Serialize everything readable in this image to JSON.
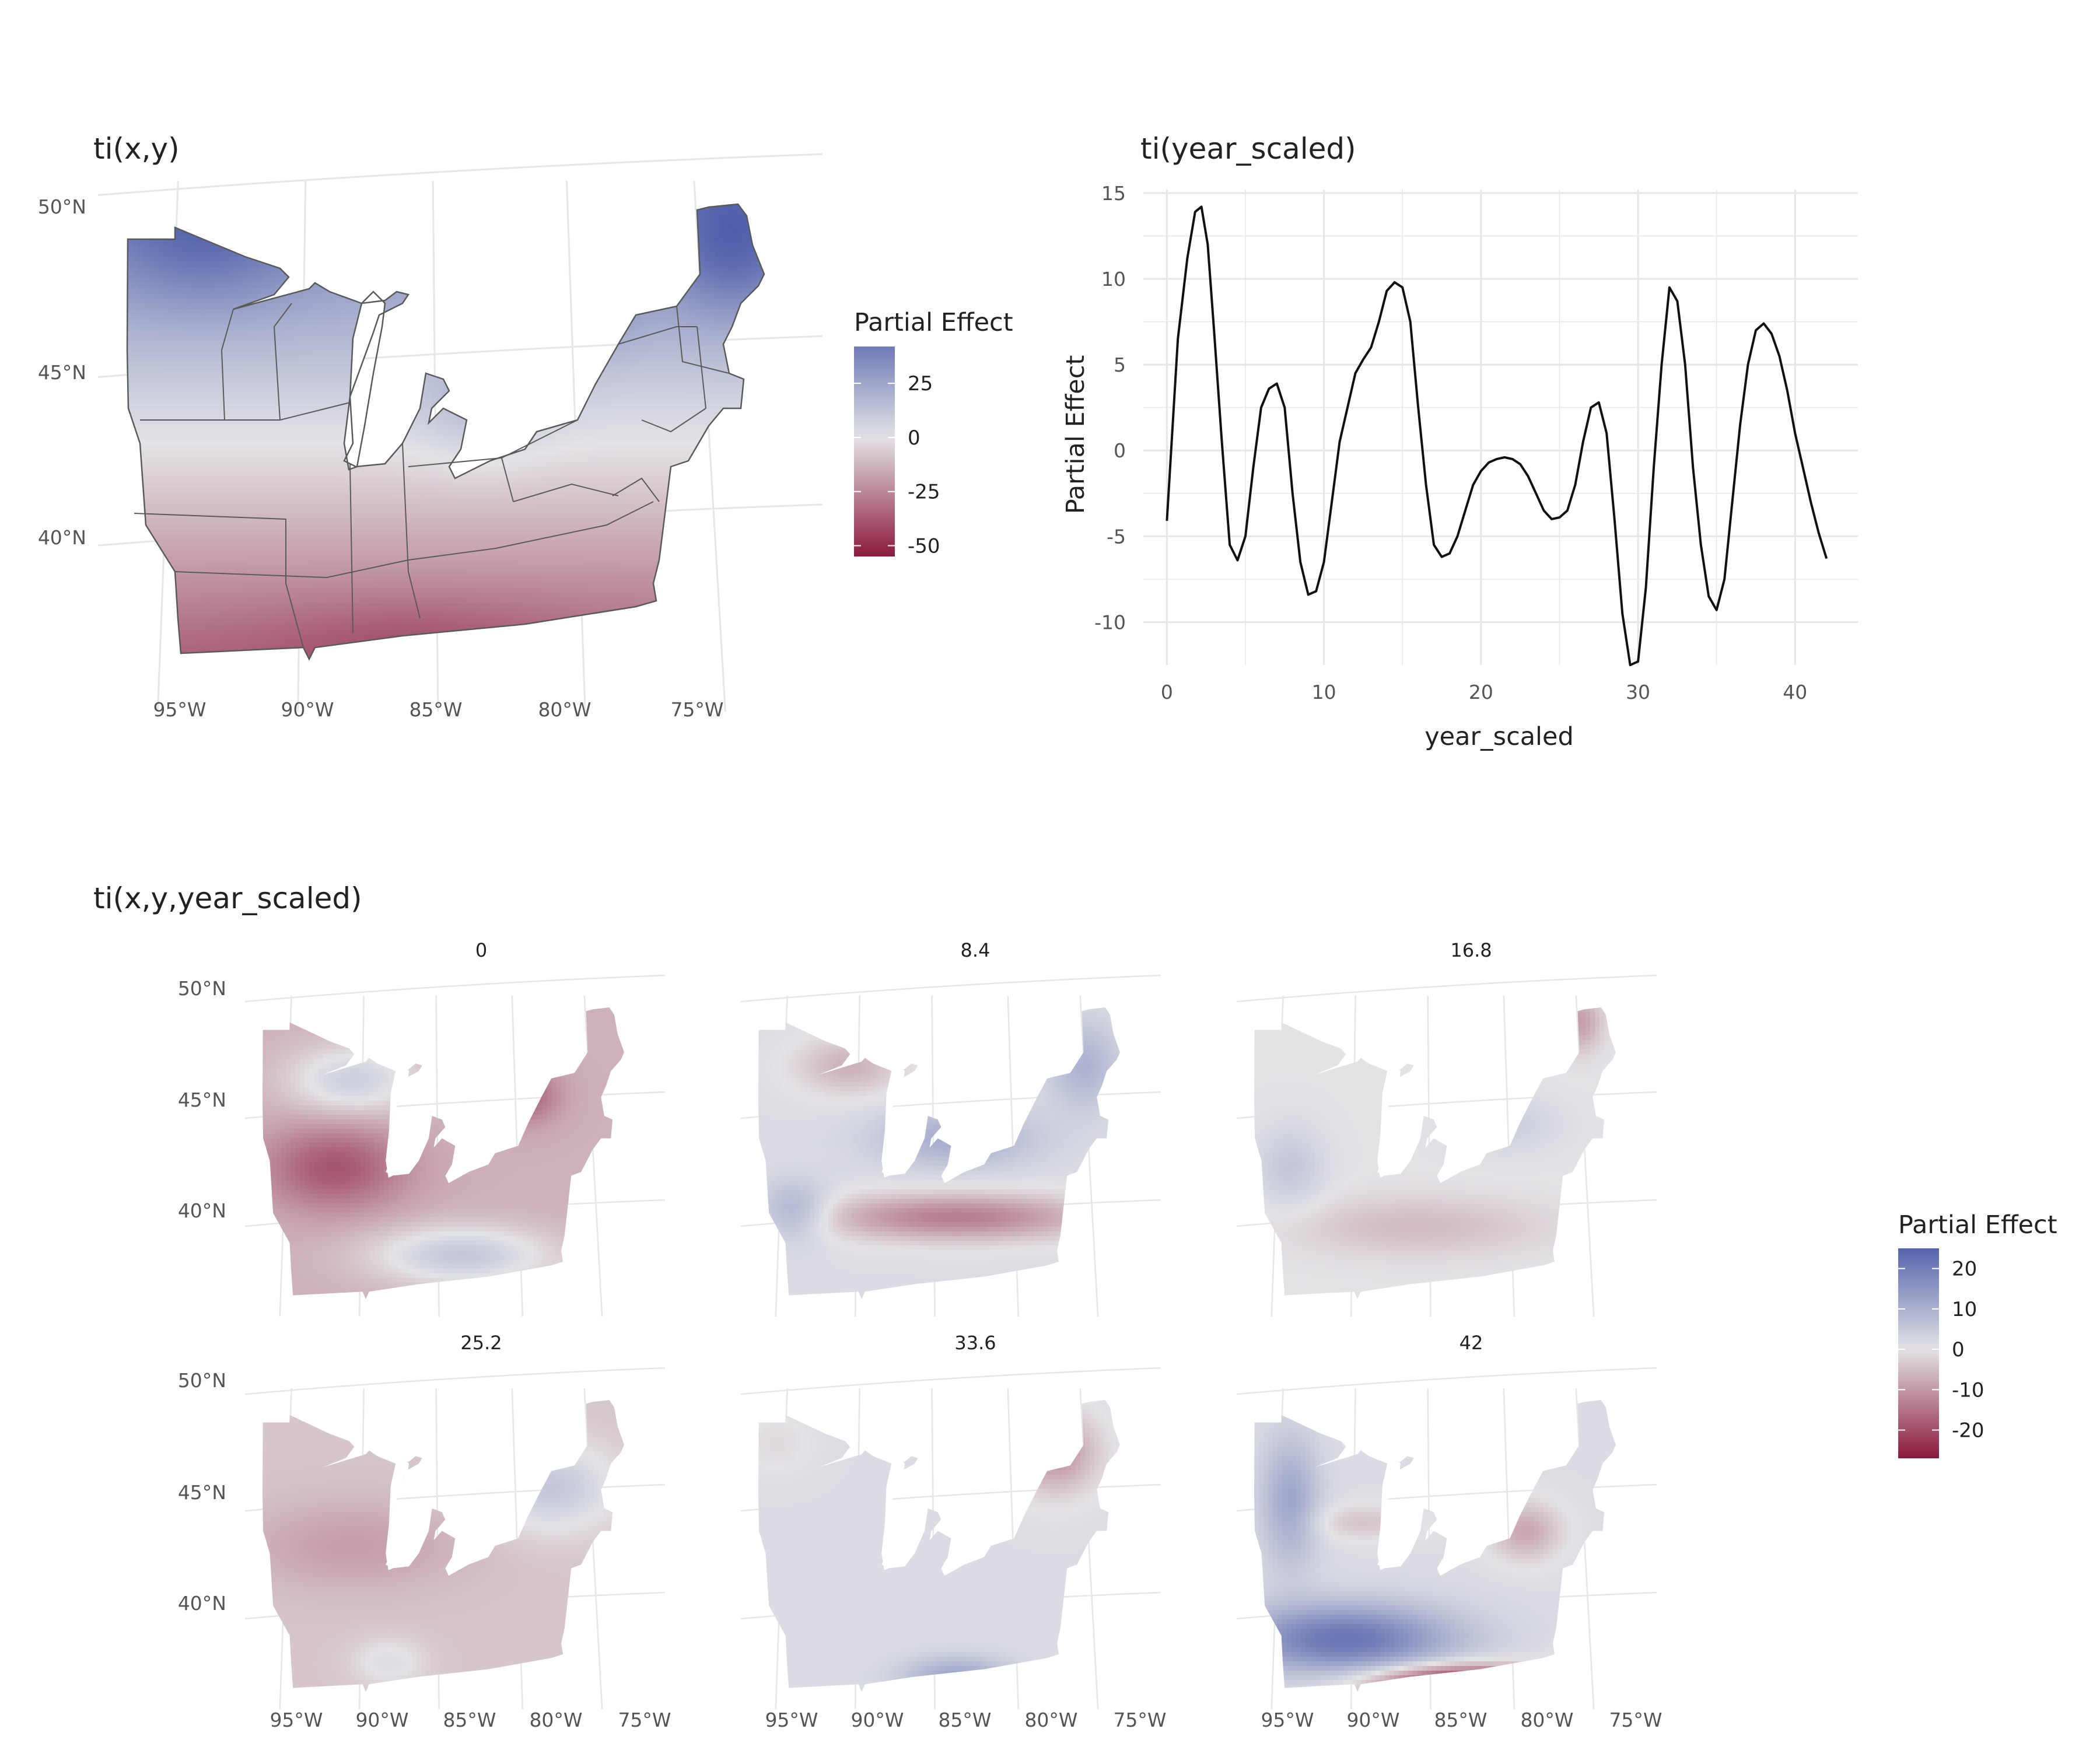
{
  "colors": {
    "low": "#8b1a3c",
    "mid": "#e3e3e6",
    "high": "#4a5aa8",
    "grid": "#e6e6e6",
    "text": "#222222",
    "axis_text": "#555555",
    "line": "#111111",
    "border": "#5a5a5a"
  },
  "chart_data": [
    {
      "type": "heatmap",
      "title": "ti(x,y)",
      "xlabel": "",
      "ylabel": "",
      "lon_ticks": [
        "95°W",
        "90°W",
        "85°W",
        "80°W",
        "75°W"
      ],
      "lat_ticks": [
        "50°N",
        "45°N",
        "40°N"
      ],
      "legend": {
        "title": "Partial Effect",
        "ticks": [
          "25",
          "0",
          "-25",
          "-50"
        ],
        "tick_values": [
          25,
          0,
          -25,
          -50
        ],
        "range": [
          -55,
          42
        ],
        "placement": "right"
      },
      "pattern": "north-positive, south-negative; strongest positive over Minnesota and Maine, strongest negative at Virginia coast"
    },
    {
      "type": "line",
      "title": "ti(year_scaled)",
      "xlabel": "year_scaled",
      "ylabel": "Partial Effect",
      "xlim": [
        -1.5,
        44
      ],
      "ylim": [
        -12.5,
        15.2
      ],
      "x_ticks": [
        "0",
        "10",
        "20",
        "30",
        "40"
      ],
      "y_ticks": [
        "15",
        "10",
        "5",
        "0",
        "-5",
        "-10"
      ],
      "grid": true,
      "x": [
        0,
        0.7,
        1.3,
        1.8,
        2.2,
        2.6,
        3.0,
        3.5,
        4.0,
        4.5,
        5.0,
        5.5,
        6.0,
        6.5,
        7.0,
        7.5,
        8.0,
        8.5,
        9.0,
        9.5,
        10.0,
        10.5,
        11.0,
        11.5,
        12.0,
        12.5,
        13.0,
        13.5,
        14.0,
        14.5,
        15.0,
        15.5,
        16.0,
        16.5,
        17.0,
        17.5,
        18.0,
        18.5,
        19.0,
        19.5,
        20.0,
        20.5,
        21.0,
        21.5,
        22.0,
        22.5,
        23.0,
        23.5,
        24.0,
        24.5,
        25.0,
        25.5,
        26.0,
        26.5,
        27.0,
        27.5,
        28.0,
        28.5,
        29.0,
        29.5,
        30.0,
        30.5,
        31.0,
        31.5,
        32.0,
        32.5,
        33.0,
        33.5,
        34.0,
        34.5,
        35.0,
        35.5,
        36.0,
        36.5,
        37.0,
        37.5,
        38.0,
        38.5,
        39.0,
        39.5,
        40.0,
        40.5,
        41.0,
        41.5,
        42.0
      ],
      "y": [
        -4.1,
        6.5,
        11.2,
        13.9,
        14.2,
        12.0,
        7.0,
        0.5,
        -5.5,
        -6.4,
        -5.0,
        -1.0,
        2.5,
        3.6,
        3.9,
        2.5,
        -2.5,
        -6.5,
        -8.4,
        -8.2,
        -6.5,
        -3.0,
        0.5,
        2.5,
        4.5,
        5.3,
        6.0,
        7.5,
        9.3,
        9.8,
        9.5,
        7.5,
        2.5,
        -2.0,
        -5.5,
        -6.2,
        -6.0,
        -5.0,
        -3.5,
        -2.0,
        -1.2,
        -0.7,
        -0.5,
        -0.4,
        -0.5,
        -0.8,
        -1.5,
        -2.5,
        -3.5,
        -4.0,
        -3.9,
        -3.5,
        -2.0,
        0.5,
        2.5,
        2.8,
        1.0,
        -4.0,
        -9.5,
        -12.5,
        -12.3,
        -8.0,
        -1.0,
        5.0,
        9.5,
        8.7,
        5.0,
        -1.0,
        -5.5,
        -8.5,
        -9.3,
        -7.5,
        -3.0,
        1.5,
        5.0,
        7.0,
        7.4,
        6.8,
        5.5,
        3.5,
        1.0,
        -1.0,
        -3.0,
        -4.8,
        -6.3
      ]
    },
    {
      "type": "heatmap",
      "title": "ti(x,y,year_scaled)",
      "facets": [
        "0",
        "8.4",
        "16.8",
        "25.2",
        "33.6",
        "42"
      ],
      "lon_ticks": [
        "95°W",
        "90°W",
        "85°W",
        "80°W",
        "75°W"
      ],
      "lat_ticks": [
        "50°N",
        "45°N",
        "40°N"
      ],
      "legend": {
        "title": "Partial Effect",
        "ticks": [
          "20",
          "10",
          "0",
          "-10",
          "-20"
        ],
        "tick_values": [
          20,
          10,
          0,
          -10,
          -20
        ],
        "range": [
          -27,
          25
        ],
        "placement": "right"
      }
    }
  ]
}
